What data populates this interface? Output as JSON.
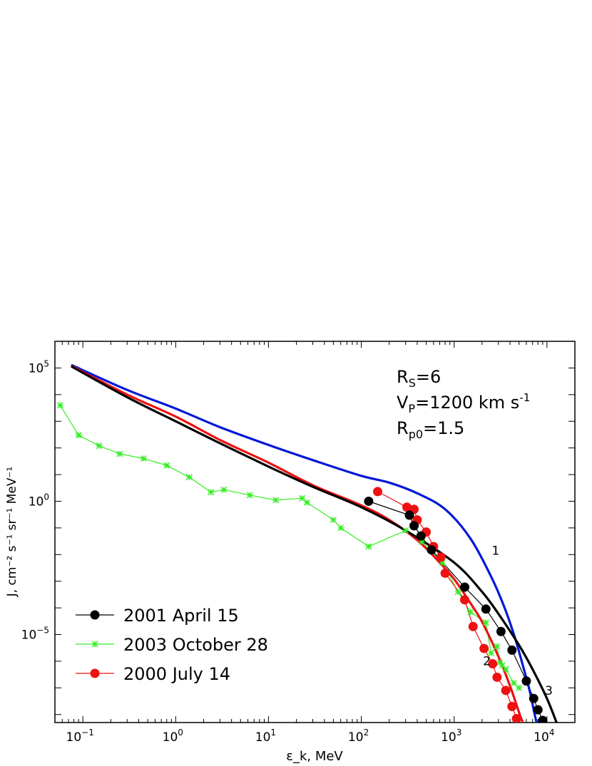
{
  "chart_data": {
    "type": "line",
    "x_scale": "log",
    "y_scale": "log",
    "xlim": [
      0.05,
      20000
    ],
    "ylim": [
      5e-09,
      1000000.0
    ],
    "xlabel": "ε_k, MeV",
    "ylabel": "J, cm⁻² s⁻¹ sr⁻¹ MeV⁻¹",
    "x_ticks": [
      {
        "value": 0.1,
        "base": "10",
        "exp": "−1"
      },
      {
        "value": 1,
        "base": "10",
        "exp": "0"
      },
      {
        "value": 10,
        "base": "10",
        "exp": "1"
      },
      {
        "value": 100,
        "base": "10",
        "exp": "2"
      },
      {
        "value": 1000,
        "base": "10",
        "exp": "3"
      },
      {
        "value": 10000,
        "base": "10",
        "exp": "4"
      }
    ],
    "y_ticks": [
      {
        "value": 100000,
        "base": "10",
        "exp": "5"
      },
      {
        "value": 1,
        "base": "10",
        "exp": "0"
      },
      {
        "value": 1e-05,
        "base": "10",
        "exp": "−5"
      }
    ],
    "annotation": {
      "rs": {
        "main": "R",
        "sub": "S",
        "rest": "=6"
      },
      "vp": {
        "main": "V",
        "sub": "P",
        "rest": "=1200 km s",
        "sup": "-1"
      },
      "rp": {
        "main": "R",
        "sub": "p0",
        "rest": "=1.5"
      }
    },
    "curve_labels": [
      {
        "text": "1",
        "x": 2800,
        "y": 0.01
      },
      {
        "text": "2",
        "x": 2250,
        "y": 7e-07
      },
      {
        "text": "3",
        "x": 10500,
        "y": 5.5e-08
      }
    ],
    "models": [
      {
        "name": "1",
        "color": "#0018d8",
        "x": [
          0.075,
          0.3,
          1,
          3,
          10,
          30,
          100,
          200,
          400,
          800,
          1500,
          2500,
          3500,
          4500,
          5500,
          6500,
          7300,
          8000
        ],
        "y": [
          130000,
          15000,
          3000,
          600,
          130,
          35,
          9,
          5,
          2,
          0.5,
          0.04,
          0.0015,
          0.0001,
          8e-06,
          7e-07,
          8e-08,
          1.2e-08,
          3e-09
        ]
      },
      {
        "name": "2",
        "color": "#ee1111",
        "x": [
          0.075,
          0.3,
          1,
          3,
          10,
          30,
          100,
          200,
          400,
          700,
          1000,
          1500,
          2000,
          3000,
          4000,
          5000,
          5800
        ],
        "y": [
          120000,
          10000,
          1500,
          200,
          28,
          4,
          0.7,
          0.2,
          0.035,
          0.005,
          0.0012,
          0.00015,
          3e-05,
          1.5e-06,
          1.2e-07,
          1.2e-08,
          3e-09
        ]
      },
      {
        "name": "3",
        "color": "#000000",
        "x": [
          0.075,
          0.3,
          1,
          3,
          10,
          30,
          100,
          300,
          1000,
          2000,
          3000,
          5000,
          7000,
          10000,
          13000
        ],
        "y": [
          115000,
          8000,
          1000,
          150,
          20,
          3.5,
          0.6,
          0.08,
          0.005,
          0.0004,
          6e-05,
          4e-06,
          5e-07,
          4e-08,
          4e-09
        ]
      }
    ],
    "series": [
      {
        "name": "2001 April 15",
        "color": "#000000",
        "marker": "circle",
        "x": [
          120,
          330,
          370,
          440,
          570,
          1300,
          2200,
          3200,
          4200,
          6000,
          7200,
          8000,
          9000
        ],
        "y": [
          1.0,
          0.3,
          0.12,
          0.05,
          0.015,
          0.0006,
          9e-05,
          1.3e-05,
          2.6e-06,
          1.8e-07,
          4e-08,
          1.5e-08,
          6e-09
        ]
      },
      {
        "name": "2003 October 28",
        "color": "#33ee22",
        "marker": "star",
        "x": [
          0.057,
          0.09,
          0.15,
          0.25,
          0.45,
          0.8,
          1.4,
          2.4,
          3.3,
          6.3,
          12,
          23,
          26,
          50,
          60,
          120,
          300,
          450,
          750,
          1100,
          1500,
          2200,
          2500,
          2900,
          3100,
          3300,
          3600,
          4400,
          5000
        ],
        "y": [
          4000,
          300,
          120,
          60,
          40,
          22,
          8,
          2.2,
          2.7,
          1.7,
          1.1,
          1.3,
          0.9,
          0.2,
          0.1,
          0.02,
          0.08,
          0.03,
          0.005,
          0.0004,
          7e-05,
          2.8e-05,
          2e-06,
          3.6e-06,
          9e-07,
          7e-07,
          5e-07,
          1.5e-07,
          1e-07
        ]
      },
      {
        "name": "2000 July 14",
        "color": "#ee1111",
        "marker": "circle",
        "x": [
          150,
          310,
          370,
          400,
          500,
          600,
          720,
          800,
          1300,
          1600,
          2100,
          2600,
          2900,
          3600,
          4200,
          4700
        ],
        "y": [
          2.3,
          0.6,
          0.5,
          0.2,
          0.07,
          0.02,
          0.008,
          0.002,
          0.0002,
          2e-05,
          3e-06,
          8e-07,
          2.5e-07,
          8e-08,
          2e-08,
          7e-09
        ]
      }
    ],
    "legend": {
      "position": "bottom-left",
      "entries": [
        "2001 April 15",
        "2003 October 28",
        "2000 July 14"
      ]
    }
  }
}
